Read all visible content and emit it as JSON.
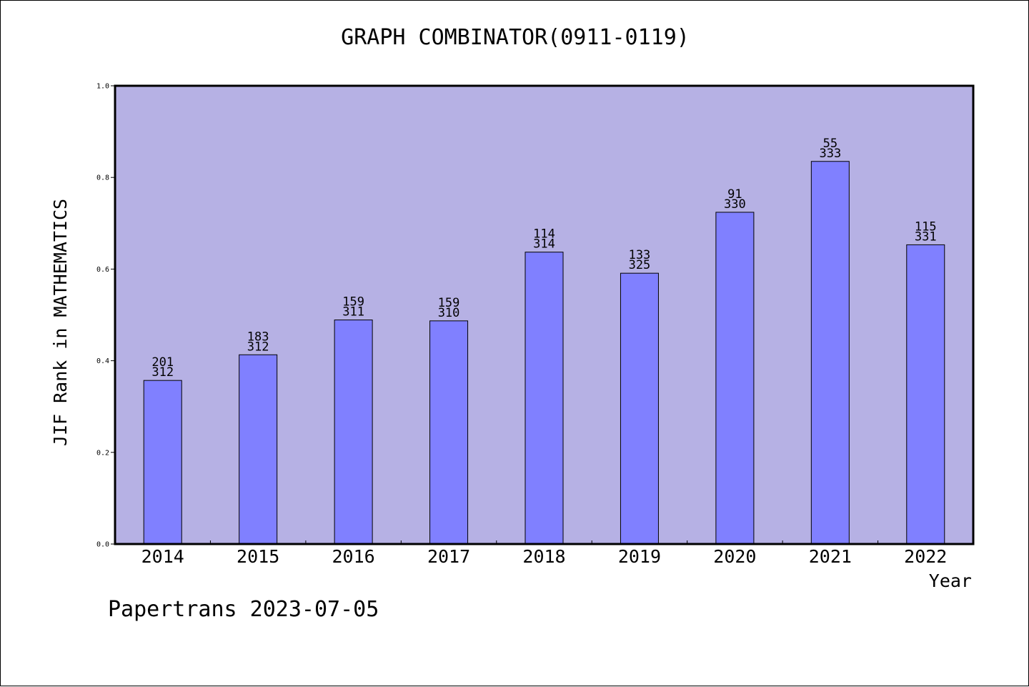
{
  "title": "GRAPH COMBINATOR(0911-0119)",
  "footer": "Papertrans 2023-07-05",
  "chart_data": {
    "type": "bar",
    "title": "GRAPH COMBINATOR(0911-0119)",
    "xlabel": "Year",
    "ylabel": "JIF Rank in MATHEMATICS",
    "ylim": [
      0,
      1.0
    ],
    "yticks": [
      "0.0",
      "0.2",
      "0.4",
      "0.6",
      "0.8",
      "1.0"
    ],
    "categories": [
      "2014",
      "2015",
      "2016",
      "2017",
      "2018",
      "2019",
      "2020",
      "2021",
      "2022"
    ],
    "values": [
      0.357,
      0.413,
      0.489,
      0.487,
      0.637,
      0.591,
      0.724,
      0.835,
      0.653
    ],
    "ranks": [
      "201",
      "183",
      "159",
      "159",
      "114",
      "133",
      "91",
      "55",
      "115"
    ],
    "totals": [
      "312",
      "312",
      "311",
      "310",
      "314",
      "325",
      "330",
      "333",
      "331"
    ],
    "colors": {
      "plot_background": "#b6b1e4",
      "bar_fill": "#8080ff",
      "bar_stroke": "#000000"
    },
    "grid": false,
    "legend": "none"
  }
}
